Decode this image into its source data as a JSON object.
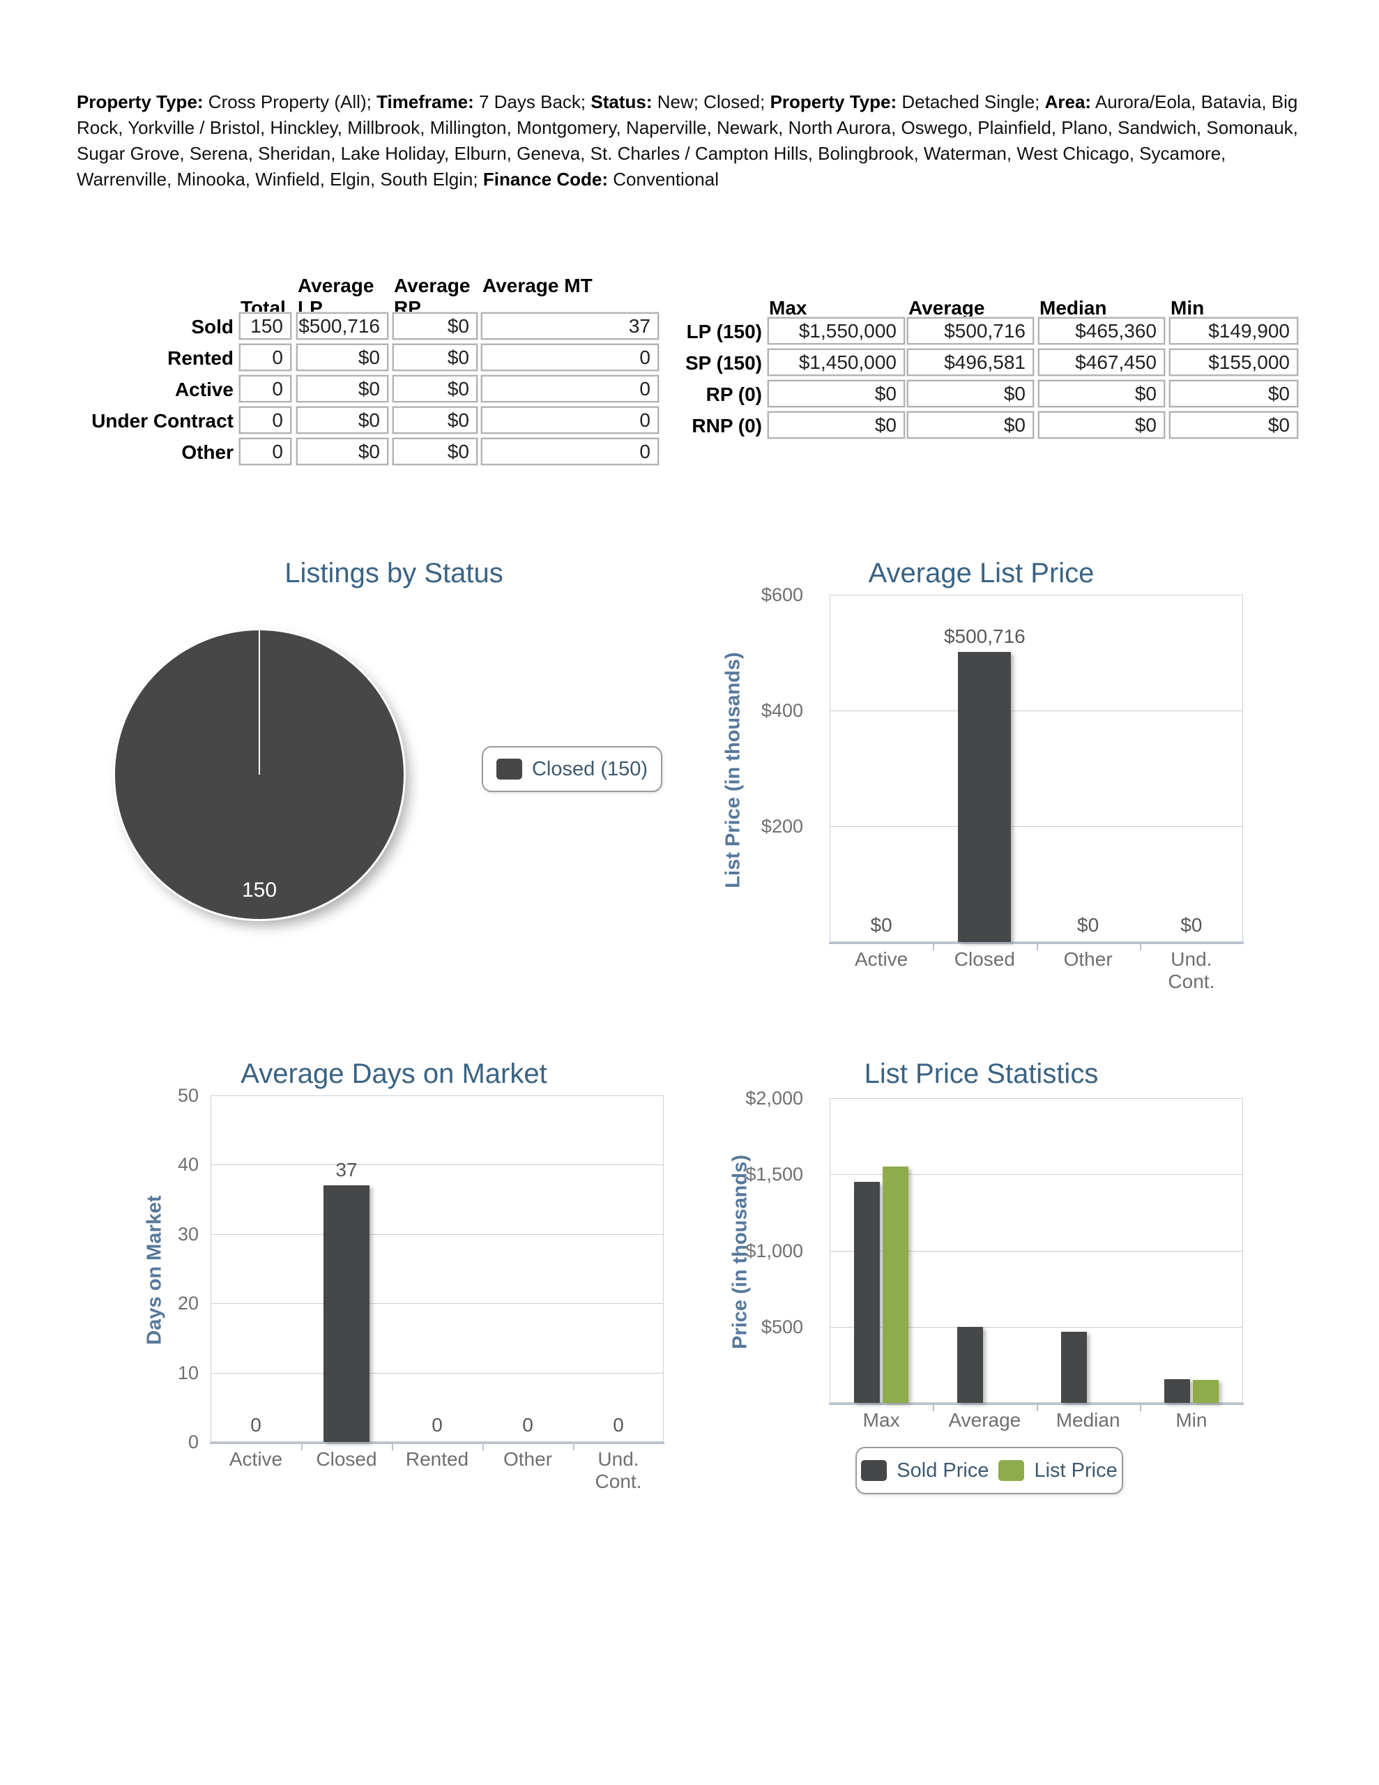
{
  "criteria": {
    "parts": [
      {
        "b": "Property Type:",
        "t": " Cross Property (All); "
      },
      {
        "b": "Timeframe:",
        "t": " 7 Days Back; "
      },
      {
        "b": "Status:",
        "t": " New; Closed; "
      },
      {
        "b": "Property Type:",
        "t": " Detached Single; "
      },
      {
        "b": "Area:",
        "t": " Aurora/Eola, Batavia, Big Rock, Yorkville / Bristol, Hinckley, Millbrook, Millington, Montgomery, Naperville, Newark, North Aurora, Oswego, Plainfield, Plano, Sandwich, Somonauk, Sugar Grove, Serena, Sheridan, Lake Holiday, Elburn, Geneva, St. Charles / Campton Hills, Bolingbrook, Waterman, West Chicago, Sycamore, Warrenville, Minooka, Winfield, Elgin, South Elgin; "
      },
      {
        "b": "Finance Code:",
        "t": " Conventional"
      }
    ]
  },
  "status_table": {
    "columns": [
      "Total",
      "Average LP",
      "Average RP",
      "Average MT"
    ],
    "rows": [
      {
        "label": "Sold",
        "values": [
          "150",
          "$500,716",
          "$0",
          "37"
        ]
      },
      {
        "label": "Rented",
        "values": [
          "0",
          "$0",
          "$0",
          "0"
        ]
      },
      {
        "label": "Active",
        "values": [
          "0",
          "$0",
          "$0",
          "0"
        ]
      },
      {
        "label": "Under Contract",
        "values": [
          "0",
          "$0",
          "$0",
          "0"
        ]
      },
      {
        "label": "Other",
        "values": [
          "0",
          "$0",
          "$0",
          "0"
        ]
      }
    ]
  },
  "price_table": {
    "columns": [
      "Max",
      "Average",
      "Median",
      "Min"
    ],
    "rows": [
      {
        "label": "LP (150)",
        "values": [
          "$1,550,000",
          "$500,716",
          "$465,360",
          "$149,900"
        ]
      },
      {
        "label": "SP (150)",
        "values": [
          "$1,450,000",
          "$496,581",
          "$467,450",
          "$155,000"
        ]
      },
      {
        "label": "RP (0)",
        "values": [
          "$0",
          "$0",
          "$0",
          "$0"
        ]
      },
      {
        "label": "RNP (0)",
        "values": [
          "$0",
          "$0",
          "$0",
          "$0"
        ]
      }
    ]
  },
  "chart_data": [
    {
      "id": "pie_status",
      "type": "pie",
      "title": "Listings by Status",
      "slices": [
        {
          "label": "Closed",
          "value": 150,
          "color": "#474747"
        }
      ],
      "data_label": "150",
      "legend": [
        "Closed (150)"
      ],
      "legend_position": "right"
    },
    {
      "id": "avg_list_price",
      "type": "bar",
      "title": "Average List Price",
      "xlabel": "",
      "ylabel": "List Price (in thousands)",
      "categories": [
        "Active",
        "Closed",
        "Other",
        "Und.\nCont."
      ],
      "values": [
        0,
        500.716,
        0,
        0
      ],
      "value_labels": [
        "$0",
        "$500,716",
        "$0",
        "$0"
      ],
      "ylim": [
        0,
        600
      ],
      "grid": true,
      "bar_color": "#454749",
      "yticks": [
        {
          "v": 600,
          "t": "$600"
        },
        {
          "v": 400,
          "t": "$400"
        },
        {
          "v": 200,
          "t": "$200"
        }
      ]
    },
    {
      "id": "avg_dom",
      "type": "bar",
      "title": "Average Days on Market",
      "xlabel": "",
      "ylabel": "Days on Market",
      "categories": [
        "Active",
        "Closed",
        "Rented",
        "Other",
        "Und.\nCont."
      ],
      "values": [
        0,
        37,
        0,
        0,
        0
      ],
      "value_labels": [
        "0",
        "37",
        "0",
        "0",
        "0"
      ],
      "ylim": [
        0,
        50
      ],
      "grid": true,
      "bar_color": "#454749",
      "yticks": [
        {
          "v": 50,
          "t": "50"
        },
        {
          "v": 40,
          "t": "40"
        },
        {
          "v": 30,
          "t": "30"
        },
        {
          "v": 20,
          "t": "20"
        },
        {
          "v": 10,
          "t": "10"
        },
        {
          "v": 0,
          "t": "0"
        }
      ]
    },
    {
      "id": "lp_stats",
      "type": "bar",
      "title": "List Price Statistics",
      "xlabel": "",
      "ylabel": "Price (in thousands)",
      "categories": [
        "Max",
        "Average",
        "Median",
        "Min"
      ],
      "series": [
        {
          "name": "Sold Price",
          "color": "#454749",
          "values": [
            1450,
            496.581,
            467.45,
            155
          ]
        },
        {
          "name": "List Price",
          "color": "#8FAC4C",
          "values": [
            1550,
            null,
            null,
            149.9
          ]
        }
      ],
      "ylim": [
        0,
        2000
      ],
      "grid": true,
      "yticks": [
        {
          "v": 2000,
          "t": "$2,000"
        },
        {
          "v": 1500,
          "t": "$1,500"
        },
        {
          "v": 1000,
          "t": "$1,000"
        },
        {
          "v": 500,
          "t": "$500"
        }
      ],
      "legend": [
        "Sold Price",
        "List Price"
      ],
      "legend_position": "bottom"
    }
  ]
}
